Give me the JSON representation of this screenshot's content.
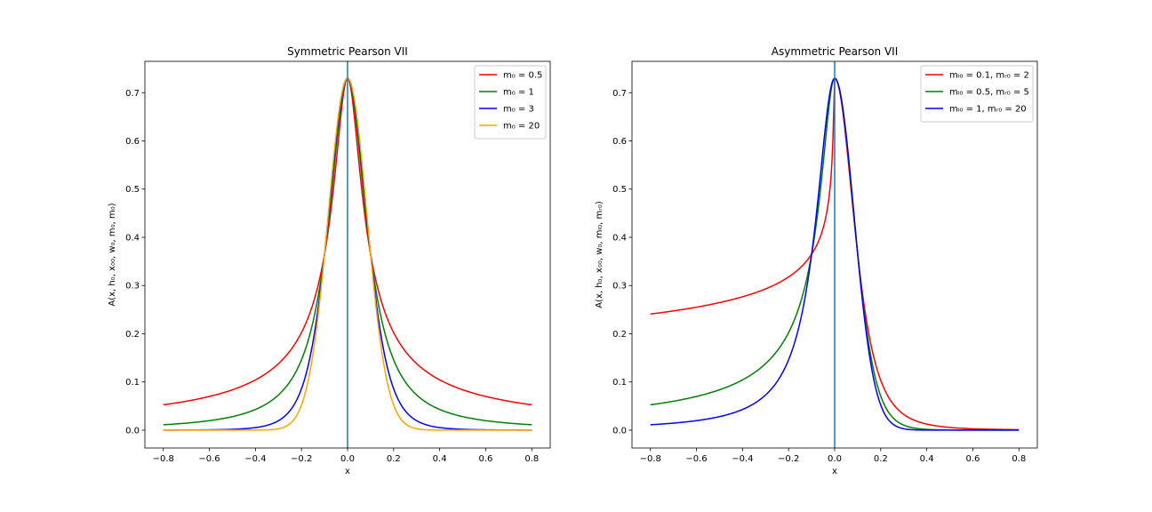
{
  "chart_data": [
    {
      "type": "line",
      "title": "Symmetric Pearson VII",
      "xlabel": "x",
      "ylabel": "A(x, h₀, x₀₀, w₀, m₀, m₀)",
      "xlim": [
        -0.88,
        0.88
      ],
      "ylim": [
        -0.037,
        0.765
      ],
      "xticks": [
        -0.8,
        -0.6,
        -0.4,
        -0.2,
        0.0,
        0.2,
        0.4,
        0.6,
        0.8
      ],
      "xtick_labels": [
        "−0.8",
        "−0.6",
        "−0.4",
        "−0.2",
        "0.0",
        "0.2",
        "0.4",
        "0.6",
        "0.8"
      ],
      "yticks": [
        0.0,
        0.1,
        0.2,
        0.3,
        0.4,
        0.5,
        0.6,
        0.7
      ],
      "ytick_labels": [
        "0.0",
        "0.1",
        "0.2",
        "0.3",
        "0.4",
        "0.5",
        "0.6",
        "0.7"
      ],
      "vline": {
        "x": 0.0,
        "color": "#1f77b4"
      },
      "legend_position": "top-right",
      "peak_height": 0.73,
      "half_width": 0.1,
      "x_range": [
        -0.8,
        0.8
      ],
      "series": [
        {
          "name": "m₀ = 0.5",
          "color": "#ff0000",
          "mL": 0.5,
          "mR": 0.5
        },
        {
          "name": "m₀ = 1",
          "color": "#008000",
          "mL": 1,
          "mR": 1
        },
        {
          "name": "m₀ = 3",
          "color": "#0000ff",
          "mL": 3,
          "mR": 3
        },
        {
          "name": "m₀ = 20",
          "color": "#ffa500",
          "mL": 20,
          "mR": 20
        }
      ]
    },
    {
      "type": "line",
      "title": "Asymmetric Pearson VII",
      "xlabel": "x",
      "ylabel": "A(x, h₀, x₀₀, w₀, mₗ₀, mᵣ₀)",
      "xlim": [
        -0.88,
        0.88
      ],
      "ylim": [
        -0.037,
        0.765
      ],
      "xticks": [
        -0.8,
        -0.6,
        -0.4,
        -0.2,
        0.0,
        0.2,
        0.4,
        0.6,
        0.8
      ],
      "xtick_labels": [
        "−0.8",
        "−0.6",
        "−0.4",
        "−0.2",
        "0.0",
        "0.2",
        "0.4",
        "0.6",
        "0.8"
      ],
      "yticks": [
        0.0,
        0.1,
        0.2,
        0.3,
        0.4,
        0.5,
        0.6,
        0.7
      ],
      "ytick_labels": [
        "0.0",
        "0.1",
        "0.2",
        "0.3",
        "0.4",
        "0.5",
        "0.6",
        "0.7"
      ],
      "vline": {
        "x": 0.0,
        "color": "#1f77b4"
      },
      "legend_position": "top-right",
      "peak_height": 0.73,
      "half_width": 0.1,
      "x_range": [
        -0.8,
        0.8
      ],
      "series": [
        {
          "name": "mₗ₀ = 0.1, mᵣ₀ = 2",
          "color": "#ff0000",
          "mL": 0.1,
          "mR": 2
        },
        {
          "name": "mₗ₀ = 0.5, mᵣ₀ = 5",
          "color": "#008000",
          "mL": 0.5,
          "mR": 5
        },
        {
          "name": "mₗ₀ = 1, mᵣ₀ = 20",
          "color": "#0000ff",
          "mL": 1,
          "mR": 20
        }
      ]
    }
  ]
}
